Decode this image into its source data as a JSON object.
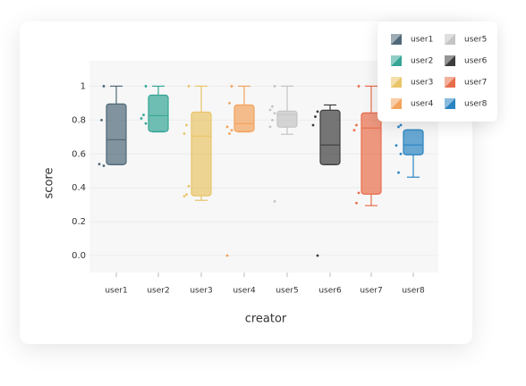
{
  "chart_data": {
    "type": "box",
    "x_label": "creator",
    "y_label": "score",
    "categories": [
      "user1",
      "user2",
      "user3",
      "user4",
      "user5",
      "user6",
      "user7",
      "user8"
    ],
    "ylim": [
      -0.1,
      1.15
    ],
    "yticks": [
      {
        "value": 0,
        "label": "0.0"
      },
      0.2,
      0.4,
      0.6,
      0.8,
      1
    ],
    "grid": true,
    "series": [
      {
        "name": "user1",
        "color": "#4f6878",
        "whisker_low": 0.537,
        "q1": 0.537,
        "median": 0.684,
        "q3": 0.895,
        "whisker_high": 1.0,
        "points": [
          1.0,
          0.8,
          0.54,
          0.53
        ]
      },
      {
        "name": "user2",
        "color": "#35a596",
        "whisker_low": 0.73,
        "q1": 0.732,
        "median": 0.826,
        "q3": 0.947,
        "whisker_high": 1.0,
        "points": [
          1.0,
          0.83,
          0.81,
          0.78
        ]
      },
      {
        "name": "user3",
        "color": "#e9c468",
        "whisker_low": 0.326,
        "q1": 0.353,
        "median": 0.705,
        "q3": 0.847,
        "whisker_high": 1.0,
        "points": [
          1.0,
          0.77,
          0.72,
          0.41,
          0.36,
          0.35
        ]
      },
      {
        "name": "user4",
        "color": "#f2a35c",
        "whisker_low": 0.73,
        "q1": 0.732,
        "median": 0.779,
        "q3": 0.889,
        "whisker_high": 1.0,
        "points": [
          1.0,
          0.9,
          0.76,
          0.74,
          0.72,
          0.0
        ]
      },
      {
        "name": "user5",
        "color": "#c4c4c4",
        "whisker_low": 0.716,
        "q1": 0.758,
        "median": 0.832,
        "q3": 0.853,
        "whisker_high": 1.0,
        "points": [
          1.0,
          0.88,
          0.86,
          0.84,
          0.8,
          0.76,
          0.32
        ]
      },
      {
        "name": "user6",
        "color": "#3d3d3d",
        "whisker_low": 0.537,
        "q1": 0.537,
        "median": 0.653,
        "q3": 0.858,
        "whisker_high": 0.889,
        "points": [
          0.85,
          0.82,
          0.77,
          0.0
        ]
      },
      {
        "name": "user7",
        "color": "#e86d4b",
        "whisker_low": 0.295,
        "q1": 0.363,
        "median": 0.753,
        "q3": 0.842,
        "whisker_high": 1.0,
        "points": [
          1.0,
          0.77,
          0.74,
          0.37,
          0.31
        ]
      },
      {
        "name": "user8",
        "color": "#2a84c2",
        "whisker_low": 0.463,
        "q1": 0.595,
        "median": 0.653,
        "q3": 0.742,
        "whisker_high": 0.742,
        "points": [
          0.77,
          0.76,
          0.65,
          0.6,
          0.49
        ]
      }
    ]
  }
}
